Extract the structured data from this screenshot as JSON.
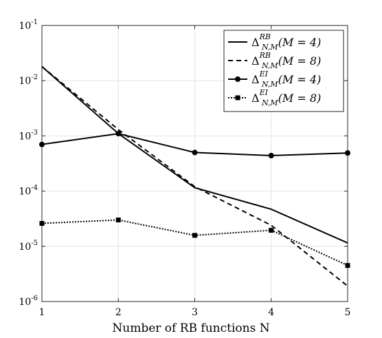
{
  "chart_data": {
    "type": "line",
    "xlabel": "Number of RB functions N",
    "ylabel": "",
    "x": [
      1,
      2,
      3,
      4,
      5
    ],
    "xlim": [
      1,
      5
    ],
    "ylim": [
      1e-06,
      0.1
    ],
    "yscale": "log",
    "grid": true,
    "legend_position": "top-right",
    "xticks": [
      "1",
      "2",
      "3",
      "4",
      "5"
    ],
    "yticks": [
      {
        "base": "10",
        "exp": "-1",
        "value": 0.1
      },
      {
        "base": "10",
        "exp": "-2",
        "value": 0.01
      },
      {
        "base": "10",
        "exp": "-3",
        "value": 0.001
      },
      {
        "base": "10",
        "exp": "-4",
        "value": 0.0001
      },
      {
        "base": "10",
        "exp": "-5",
        "value": 1e-05
      },
      {
        "base": "10",
        "exp": "-6",
        "value": 1e-06
      }
    ],
    "series": [
      {
        "name": "Δ^{RB}_{N,M}(M = 4)",
        "symbol": "Δ",
        "sup": "RB",
        "sub": "N,M",
        "cond": "(M = 4)",
        "style": "solid",
        "marker": "none",
        "color": "#000000",
        "values": [
          0.018,
          0.0011,
          0.000115,
          4.7e-05,
          1.15e-05
        ]
      },
      {
        "name": "Δ^{RB}_{N,M}(M = 8)",
        "symbol": "Δ",
        "sup": "RB",
        "sub": "N,M",
        "cond": "(M = 8)",
        "style": "dashed",
        "marker": "none",
        "color": "#000000",
        "values": [
          0.018,
          0.0013,
          0.00012,
          2.4e-05,
          1.9e-06
        ]
      },
      {
        "name": "Δ^{EI}_{N,M}(M = 4)",
        "symbol": "Δ",
        "sup": "EI",
        "sub": "N,M",
        "cond": "(M = 4)",
        "style": "solid",
        "marker": "circle",
        "color": "#000000",
        "values": [
          0.0007,
          0.0011,
          0.0005,
          0.00044,
          0.00049
        ]
      },
      {
        "name": "Δ^{EI}_{N,M}(M = 8)",
        "symbol": "Δ",
        "sup": "EI",
        "sub": "N,M",
        "cond": "(M = 8)",
        "style": "dotted",
        "marker": "square",
        "color": "#000000",
        "values": [
          2.6e-05,
          3e-05,
          1.58e-05,
          1.95e-05,
          4.5e-06
        ]
      }
    ]
  }
}
